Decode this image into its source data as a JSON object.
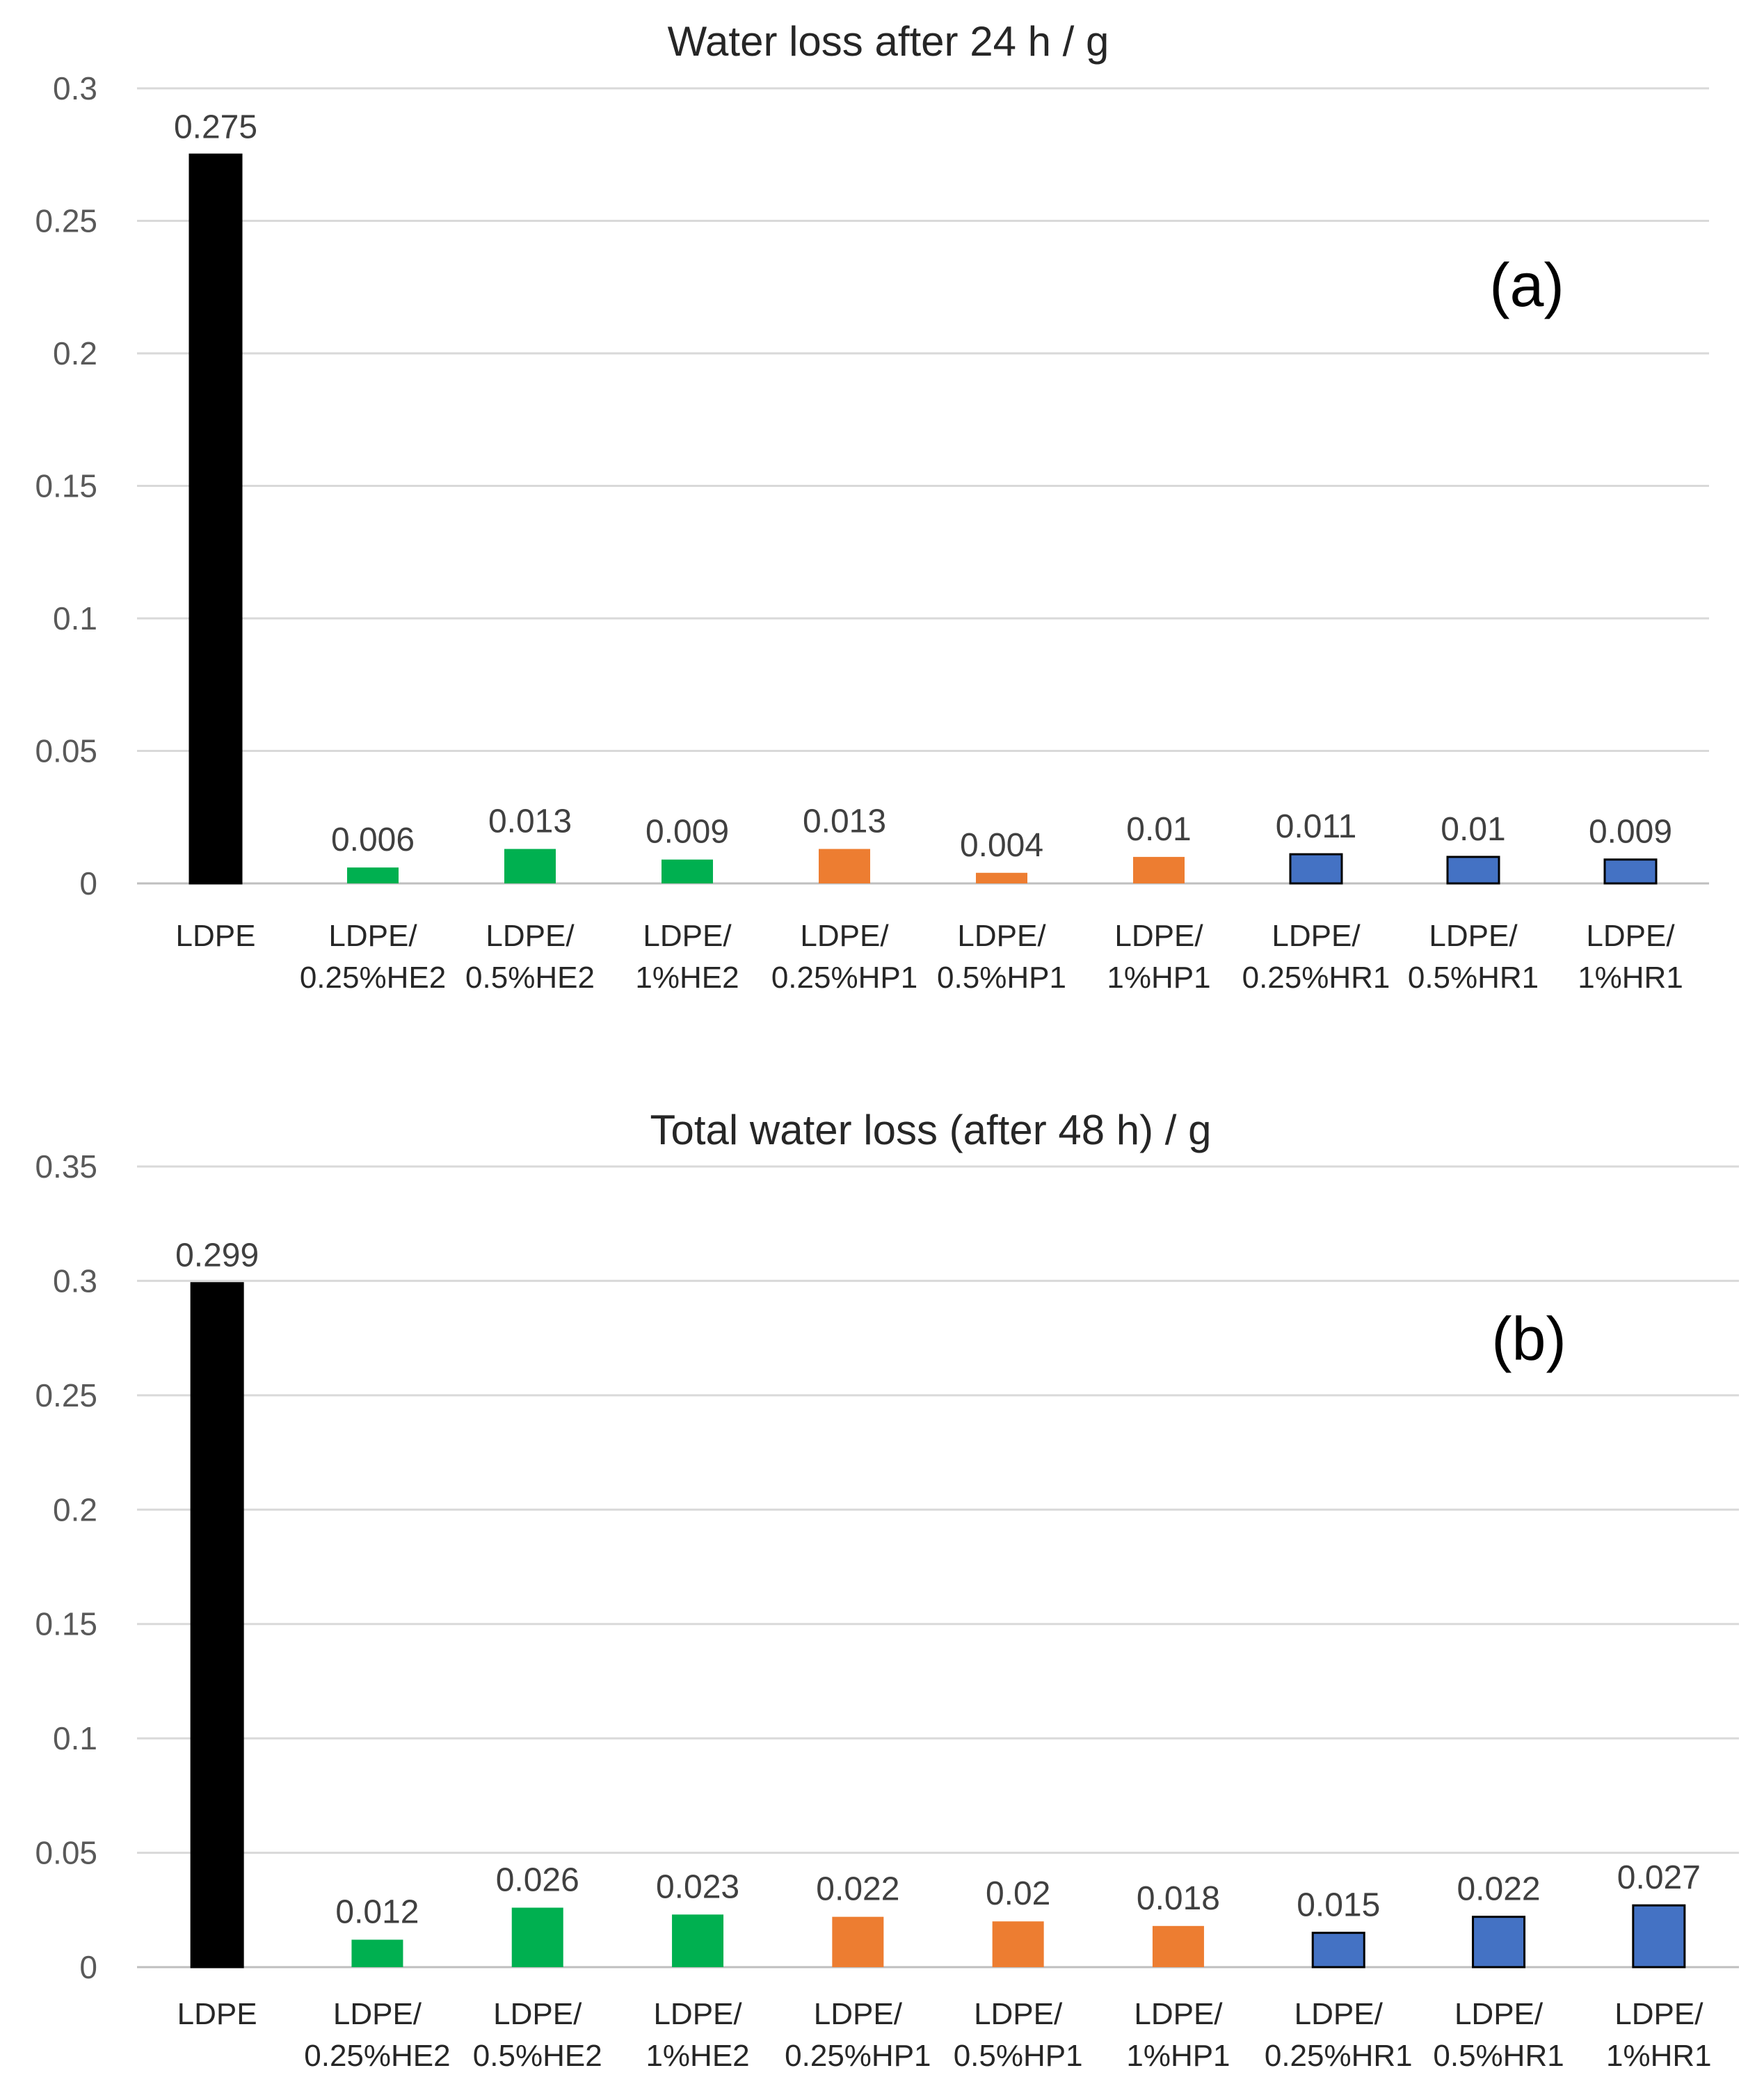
{
  "chart_data": [
    {
      "type": "bar",
      "title": "Water loss after 24 h / g",
      "panel_label": "(a)",
      "categories": [
        [
          "LDPE"
        ],
        [
          "LDPE/",
          "0.25%HE2"
        ],
        [
          "LDPE/",
          "0.5%HE2"
        ],
        [
          "LDPE/",
          "1%HE2"
        ],
        [
          "LDPE/",
          "0.25%HP1"
        ],
        [
          "LDPE/",
          "0.5%HP1"
        ],
        [
          "LDPE/",
          "1%HP1"
        ],
        [
          "LDPE/",
          "0.25%HR1"
        ],
        [
          "LDPE/",
          "0.5%HR1"
        ],
        [
          "LDPE/",
          "1%HR1"
        ]
      ],
      "values": [
        0.275,
        0.006,
        0.013,
        0.009,
        0.013,
        0.004,
        0.01,
        0.011,
        0.01,
        0.009
      ],
      "value_labels": [
        "0.275",
        "0.006",
        "0.013",
        "0.009",
        "0.013",
        "0.004",
        "0.01",
        "0.011",
        "0.01",
        "0.009"
      ],
      "bar_colors": [
        "#000000",
        "#00b050",
        "#00b050",
        "#00b050",
        "#ed7d31",
        "#ed7d31",
        "#ed7d31",
        "#4472c4",
        "#4472c4",
        "#4472c4"
      ],
      "outlined": [
        true,
        false,
        false,
        false,
        false,
        false,
        false,
        true,
        true,
        true
      ],
      "ylim": [
        0,
        0.3
      ],
      "yticks": [
        0,
        0.05,
        0.1,
        0.15,
        0.2,
        0.25,
        0.3
      ],
      "ytick_labels": [
        "0",
        "0.05",
        "0.1",
        "0.15",
        "0.2",
        "0.25",
        "0.3"
      ],
      "xlabel": "",
      "ylabel": "",
      "grid": true
    },
    {
      "type": "bar",
      "title": "Total water loss (after 48 h) / g",
      "panel_label": "(b)",
      "categories": [
        [
          "LDPE"
        ],
        [
          "LDPE/",
          "0.25%HE2"
        ],
        [
          "LDPE/",
          "0.5%HE2"
        ],
        [
          "LDPE/",
          "1%HE2"
        ],
        [
          "LDPE/",
          "0.25%HP1"
        ],
        [
          "LDPE/",
          "0.5%HP1"
        ],
        [
          "LDPE/",
          "1%HP1"
        ],
        [
          "LDPE/",
          "0.25%HR1"
        ],
        [
          "LDPE/",
          "0.5%HR1"
        ],
        [
          "LDPE/",
          "1%HR1"
        ]
      ],
      "values": [
        0.299,
        0.012,
        0.026,
        0.023,
        0.022,
        0.02,
        0.018,
        0.015,
        0.022,
        0.027
      ],
      "value_labels": [
        "0.299",
        "0.012",
        "0.026",
        "0.023",
        "0.022",
        "0.02",
        "0.018",
        "0.015",
        "0.022",
        "0.027"
      ],
      "bar_colors": [
        "#000000",
        "#00b050",
        "#00b050",
        "#00b050",
        "#ed7d31",
        "#ed7d31",
        "#ed7d31",
        "#4472c4",
        "#4472c4",
        "#4472c4"
      ],
      "outlined": [
        true,
        false,
        false,
        false,
        false,
        false,
        false,
        true,
        true,
        true
      ],
      "ylim": [
        0,
        0.35
      ],
      "yticks": [
        0,
        0.05,
        0.1,
        0.15,
        0.2,
        0.25,
        0.3,
        0.35
      ],
      "ytick_labels": [
        "0",
        "0.05",
        "0.1",
        "0.15",
        "0.2",
        "0.25",
        "0.3",
        "0.35"
      ],
      "xlabel": "",
      "ylabel": "",
      "grid": true
    }
  ]
}
